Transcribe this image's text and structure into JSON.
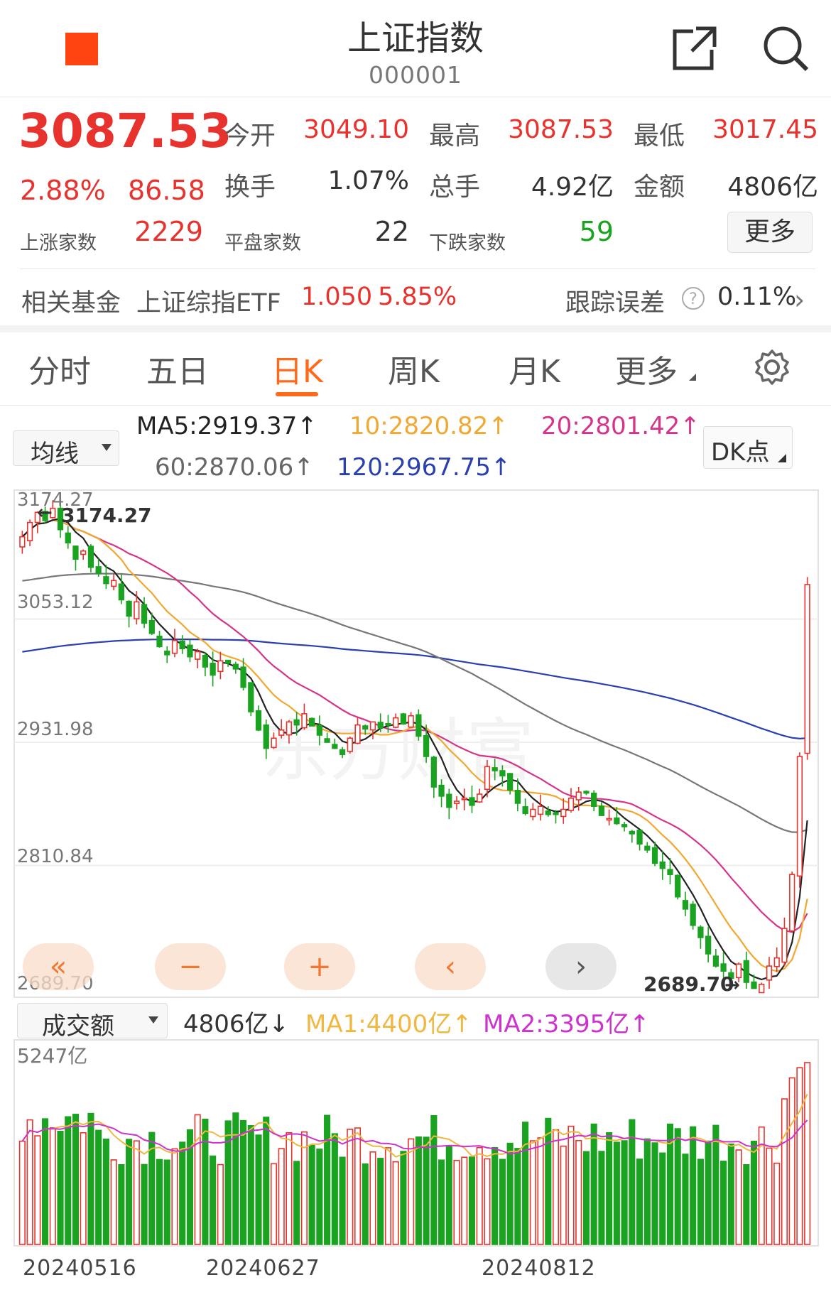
{
  "header": {
    "title": "上证指数",
    "code": "000001",
    "brand_color": "#ff4411"
  },
  "quote": {
    "price": "3087.53",
    "pct": "2.88%",
    "change": "86.58",
    "open_label": "今开",
    "open": "3049.10",
    "high_label": "最高",
    "high": "3087.53",
    "low_label": "最低",
    "low": "3017.45",
    "turnover_label": "换手",
    "turnover": "1.07%",
    "volume_label": "总手",
    "volume": "4.92亿",
    "amount_label": "金额",
    "amount": "4806亿",
    "up_label": "上涨家数",
    "up": "2229",
    "flat_label": "平盘家数",
    "flat": "22",
    "down_label": "下跌家数",
    "down": "59",
    "more_label": "更多"
  },
  "fund": {
    "label": "相关基金",
    "name": "上证综指ETF",
    "price": "1.050",
    "pct": "5.85%",
    "track_label": "跟踪误差",
    "track_value": "0.11%"
  },
  "tabs": [
    "分时",
    "五日",
    "日K",
    "周K",
    "月K",
    "更多"
  ],
  "active_tab": "日K",
  "ma_selector": "均线",
  "ma": {
    "ma5": "MA5:2919.37↑",
    "ma10": "10:2820.82↑",
    "ma20": "20:2801.42↑",
    "ma60": "60:2870.06↑",
    "ma120": "120:2967.75↑"
  },
  "dk_button": "DK点",
  "kline": {
    "y_labels": [
      "3174.27",
      "3053.12",
      "2931.98",
      "2810.84",
      "2689.70"
    ],
    "high_annotation": "3174.27",
    "low_annotation": "2689.70",
    "watermark": "东方财富"
  },
  "volume": {
    "selector": "成交额",
    "value": "4806亿↓",
    "ma1": "MA1:4400亿↑",
    "ma2": "MA2:3395亿↑",
    "max_label": "5247亿"
  },
  "dates": [
    "20240516",
    "20240627",
    "20240812"
  ],
  "colors": {
    "up": "#e8322d",
    "down": "#1aa320",
    "ma5": "#222222",
    "ma10": "#f0a830",
    "ma20": "#d6338a",
    "ma60": "#777777",
    "ma120": "#2a3fb0"
  },
  "chart_data": {
    "type": "candlestick",
    "title": "",
    "ylim": [
      2689.7,
      3174.27
    ],
    "closes": [
      3134,
      3148,
      3158,
      3150,
      3162,
      3141,
      3128,
      3112,
      3120,
      3104,
      3098,
      3088,
      3091,
      3072,
      3056,
      3070,
      3049,
      3039,
      3026,
      3018,
      3032,
      3024,
      3016,
      3021,
      3006,
      2998,
      3012,
      3010,
      3004,
      2986,
      2962,
      2944,
      2926,
      2936,
      2944,
      2952,
      2949,
      2960,
      2948,
      2939,
      2932,
      2926,
      2920,
      2936,
      2949,
      2945,
      2952,
      2946,
      2949,
      2956,
      2950,
      2958,
      2938,
      2918,
      2888,
      2879,
      2868,
      2874,
      2877,
      2870,
      2881,
      2908,
      2904,
      2899,
      2885,
      2872,
      2862,
      2866,
      2869,
      2861,
      2861,
      2866,
      2877,
      2883,
      2882,
      2869,
      2860,
      2857,
      2852,
      2849,
      2842,
      2832,
      2826,
      2813,
      2808,
      2802,
      2780,
      2768,
      2752,
      2740,
      2724,
      2712,
      2707,
      2700,
      2714,
      2696,
      2690,
      2694,
      2712,
      2720,
      2749,
      2802,
      2918,
      3087
    ]
  }
}
